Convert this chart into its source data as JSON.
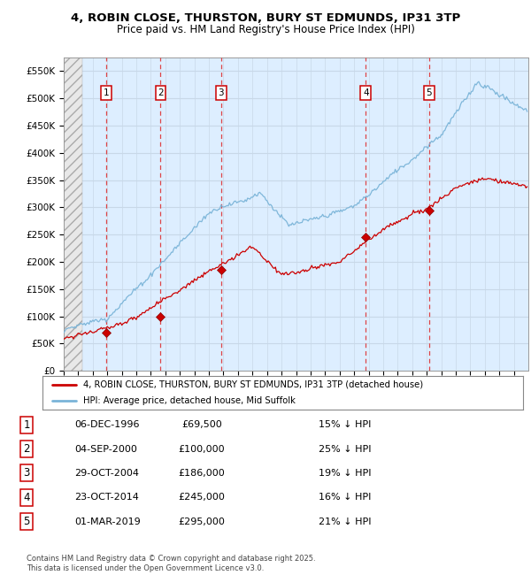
{
  "title_line1": "4, ROBIN CLOSE, THURSTON, BURY ST EDMUNDS, IP31 3TP",
  "title_line2": "Price paid vs. HM Land Registry's House Price Index (HPI)",
  "ylim": [
    0,
    575000
  ],
  "xlim_start": 1994.0,
  "xlim_end": 2026.0,
  "yticks": [
    0,
    50000,
    100000,
    150000,
    200000,
    250000,
    300000,
    350000,
    400000,
    450000,
    500000,
    550000
  ],
  "ytick_labels": [
    "£0",
    "£50K",
    "£100K",
    "£150K",
    "£200K",
    "£250K",
    "£300K",
    "£350K",
    "£400K",
    "£450K",
    "£500K",
    "£550K"
  ],
  "hpi_color": "#7ab4d8",
  "price_color": "#cc0000",
  "background_color": "#ddeeff",
  "grid_color": "#c8d8e8",
  "sale_dates_x": [
    1996.92,
    2000.67,
    2004.83,
    2014.81,
    2019.17
  ],
  "sale_prices": [
    69500,
    100000,
    186000,
    245000,
    295000
  ],
  "sale_labels": [
    "1",
    "2",
    "3",
    "4",
    "5"
  ],
  "table_rows": [
    [
      "1",
      "06-DEC-1996",
      "£69,500",
      "15% ↓ HPI"
    ],
    [
      "2",
      "04-SEP-2000",
      "£100,000",
      "25% ↓ HPI"
    ],
    [
      "3",
      "29-OCT-2004",
      "£186,000",
      "19% ↓ HPI"
    ],
    [
      "4",
      "23-OCT-2014",
      "£245,000",
      "16% ↓ HPI"
    ],
    [
      "5",
      "01-MAR-2019",
      "£295,000",
      "21% ↓ HPI"
    ]
  ],
  "legend_label_red": "4, ROBIN CLOSE, THURSTON, BURY ST EDMUNDS, IP31 3TP (detached house)",
  "legend_label_blue": "HPI: Average price, detached house, Mid Suffolk",
  "footer_text": "Contains HM Land Registry data © Crown copyright and database right 2025.\nThis data is licensed under the Open Government Licence v3.0."
}
